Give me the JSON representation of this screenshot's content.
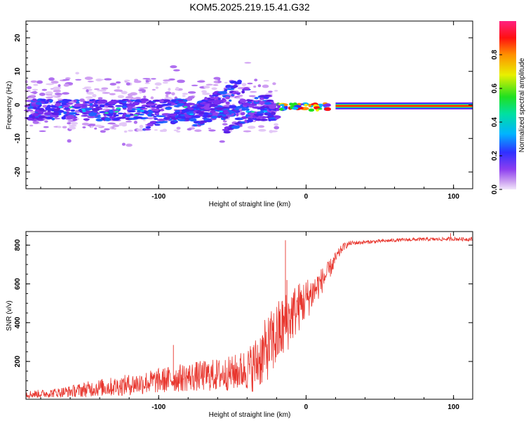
{
  "title": "KOM5.2025.219.15.41.G32",
  "chart_data": [
    {
      "type": "heatmap",
      "xlabel": "Height of straight line (km)",
      "ylabel": "Frequency (Hz)",
      "xlim": [
        -190,
        113
      ],
      "ylim": [
        -25,
        25
      ],
      "xticks": [
        -100,
        0,
        100
      ],
      "yticks": [
        -20,
        -10,
        0,
        10,
        20
      ],
      "colorbar": {
        "label": "Normalized spectral amplitude",
        "range": [
          0,
          1
        ],
        "ticks": [
          "0.0",
          "0.2",
          "0.4",
          "0.6",
          "0.8"
        ]
      },
      "description_series": [
        {
          "name": "scatter cloud",
          "x_range": [
            -190,
            -20
          ],
          "freq_range": [
            -11,
            12
          ]
        },
        {
          "name": "descending streaks",
          "x_range": [
            -110,
            -20
          ],
          "freq_range": [
            -10,
            6
          ]
        },
        {
          "name": "dominant line near 0 Hz",
          "x_range": [
            -20,
            113
          ],
          "freq": [
            0,
            -0.5
          ]
        }
      ]
    },
    {
      "type": "line",
      "xlabel": "Height of straight line (km)",
      "ylabel": "SNR (v/v)",
      "xlim": [
        -190,
        113
      ],
      "ylim": [
        5,
        870
      ],
      "xticks": [
        -100,
        0,
        100
      ],
      "yticks": [
        200,
        400,
        600,
        800
      ],
      "series": [
        {
          "name": "SNR",
          "color": "#e8362e",
          "x": [
            -190,
            -175,
            -160,
            -150,
            -140,
            -130,
            -120,
            -110,
            -100,
            -90,
            -80,
            -70,
            -60,
            -50,
            -40,
            -35,
            -30,
            -25,
            -20,
            -15,
            -10,
            -5,
            0,
            5,
            10,
            15,
            20,
            25,
            30,
            40,
            50,
            60,
            70,
            80,
            90,
            100,
            113
          ],
          "y": [
            30,
            35,
            45,
            55,
            65,
            70,
            80,
            90,
            100,
            110,
            120,
            125,
            130,
            140,
            160,
            180,
            230,
            280,
            330,
            380,
            440,
            480,
            520,
            560,
            610,
            660,
            730,
            790,
            810,
            815,
            820,
            825,
            828,
            830,
            830,
            832,
            830
          ],
          "spread": [
            20,
            22,
            30,
            40,
            45,
            50,
            55,
            60,
            65,
            70,
            75,
            80,
            85,
            90,
            110,
            140,
            160,
            170,
            180,
            170,
            150,
            130,
            110,
            90,
            70,
            55,
            35,
            20,
            12,
            10,
            9,
            9,
            9,
            9,
            9,
            10,
            10
          ],
          "peaks": [
            {
              "x": -90,
              "y": 285
            },
            {
              "x": -14,
              "y": 825
            },
            {
              "x": -13,
              "y": 620
            },
            {
              "x": 98,
              "y": 862
            }
          ]
        }
      ]
    }
  ]
}
